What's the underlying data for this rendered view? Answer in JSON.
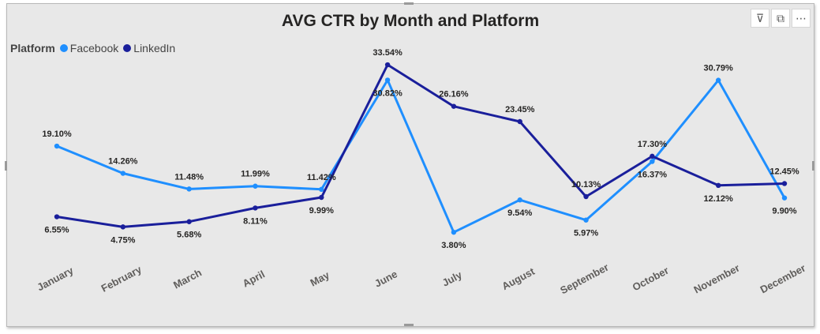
{
  "visual": {
    "title": "AVG CTR by Month and Platform",
    "legend_title": "Platform",
    "toolbar": [
      {
        "name": "filter-icon",
        "glyph": "⊽"
      },
      {
        "name": "focus-mode-icon",
        "glyph": "⧉"
      },
      {
        "name": "more-options-icon",
        "glyph": "⋯"
      }
    ]
  },
  "chart_data": {
    "type": "line",
    "title": "AVG CTR by Month and Platform",
    "legend_title": "Platform",
    "legend_position": "top-left",
    "categories": [
      "January",
      "February",
      "March",
      "April",
      "May",
      "June",
      "July",
      "August",
      "September",
      "October",
      "November",
      "December"
    ],
    "series": [
      {
        "name": "Facebook",
        "color": "#1f8fff",
        "values": [
          19.1,
          14.26,
          11.48,
          11.99,
          11.42,
          30.82,
          3.8,
          9.54,
          5.97,
          16.37,
          30.79,
          9.9
        ],
        "labels": [
          "19.10%",
          "14.26%",
          "11.48%",
          "11.99%",
          "11.42%",
          "30.82%",
          "3.80%",
          "9.54%",
          "5.97%",
          "16.37%",
          "30.79%",
          "9.90%"
        ]
      },
      {
        "name": "LinkedIn",
        "color": "#1a1f9b",
        "values": [
          6.55,
          4.75,
          5.68,
          8.11,
          9.99,
          33.54,
          26.16,
          23.45,
          10.13,
          17.3,
          12.12,
          12.45
        ],
        "labels": [
          "6.55%",
          "4.75%",
          "5.68%",
          "8.11%",
          "9.99%",
          "33.54%",
          "26.16%",
          "23.45%",
          "10.13%",
          "17.30%",
          "12.12%",
          "12.45%"
        ]
      }
    ],
    "grid": false,
    "ylim": [
      2,
      32
    ]
  }
}
